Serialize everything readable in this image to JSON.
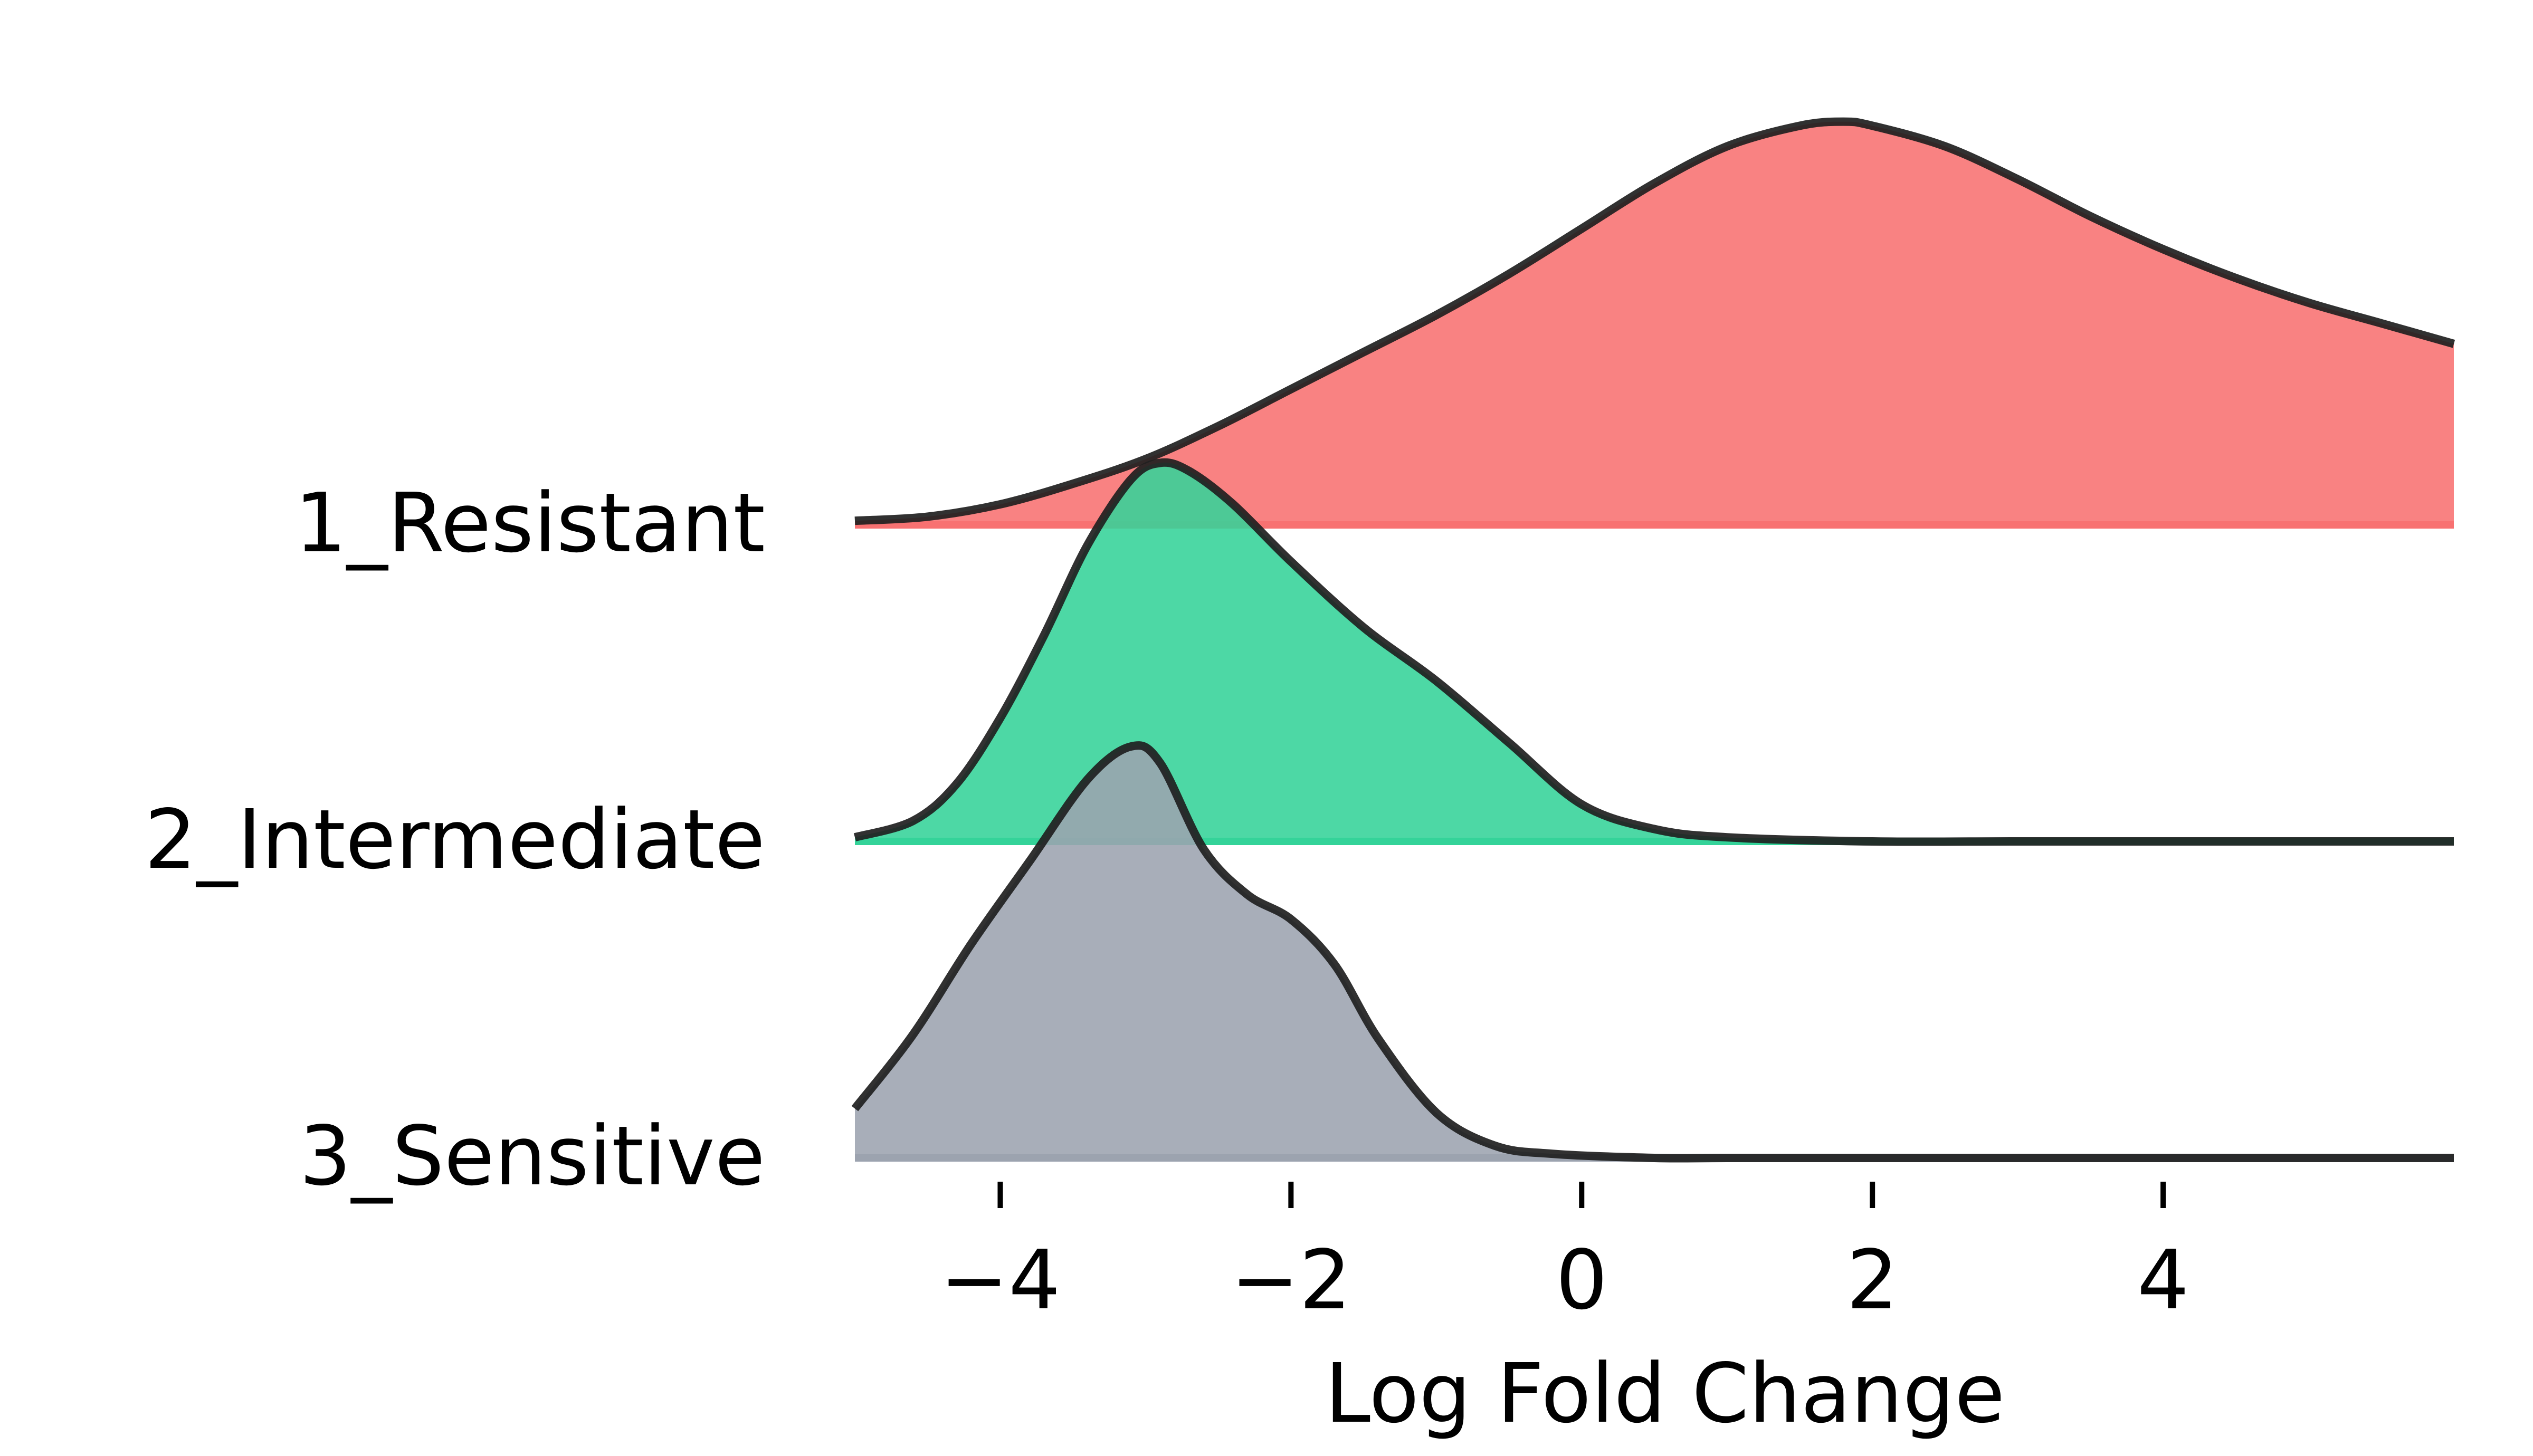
{
  "chart_data": {
    "type": "area",
    "subtype": "ridgeline",
    "title": "",
    "xlabel": "Log Fold Change",
    "ylabel": "",
    "xlim": [
      -5,
      6
    ],
    "x_ticks": [
      -4,
      -2,
      0,
      2,
      4
    ],
    "x_tick_labels": [
      "−4",
      "−2",
      "0",
      "2",
      "4"
    ],
    "grid": false,
    "legend": "none",
    "series": [
      {
        "name": "1_Resistant",
        "color": "#f87171",
        "x": [
          -5,
          -4.5,
          -4,
          -3.5,
          -3,
          -2.5,
          -2,
          -1.5,
          -1,
          -0.5,
          0,
          0.5,
          1,
          1.5,
          1.8,
          2,
          2.5,
          3,
          3.5,
          4,
          4.5,
          5,
          5.5,
          6
        ],
        "y": [
          0.01,
          0.02,
          0.05,
          0.1,
          0.16,
          0.24,
          0.33,
          0.42,
          0.51,
          0.61,
          0.72,
          0.83,
          0.92,
          0.97,
          0.98,
          0.97,
          0.92,
          0.84,
          0.75,
          0.67,
          0.6,
          0.54,
          0.49,
          0.44
        ]
      },
      {
        "name": "2_Intermediate",
        "color": "#34d399",
        "x": [
          -5,
          -4.6,
          -4.3,
          -4,
          -3.7,
          -3.4,
          -3.1,
          -2.9,
          -2.7,
          -2.4,
          -2,
          -1.5,
          -1,
          -0.5,
          0,
          0.5,
          1,
          2,
          3,
          4,
          5,
          6
        ],
        "y": [
          0.01,
          0.05,
          0.14,
          0.3,
          0.5,
          0.72,
          0.88,
          0.92,
          0.9,
          0.82,
          0.68,
          0.52,
          0.39,
          0.24,
          0.09,
          0.03,
          0.01,
          0,
          0,
          0,
          0,
          0
        ]
      },
      {
        "name": "3_Sensitive",
        "color": "#9ca3af",
        "x": [
          -5,
          -4.6,
          -4.2,
          -3.8,
          -3.4,
          -3.1,
          -2.9,
          -2.6,
          -2.3,
          -2,
          -1.7,
          -1.4,
          -1,
          -0.6,
          -0.2,
          0.5,
          1,
          2,
          3,
          4,
          5,
          6
        ],
        "y": [
          0.12,
          0.3,
          0.52,
          0.72,
          0.92,
          1.0,
          0.96,
          0.75,
          0.64,
          0.58,
          0.47,
          0.29,
          0.11,
          0.03,
          0.01,
          0,
          0,
          0,
          0,
          0,
          0,
          0
        ]
      }
    ]
  }
}
